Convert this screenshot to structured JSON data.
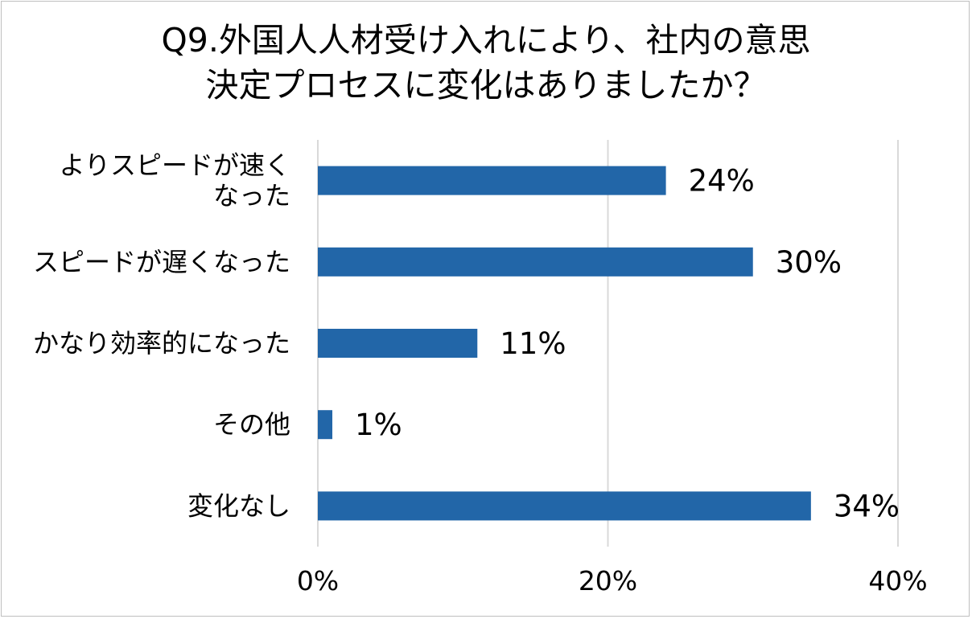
{
  "chart_data": {
    "type": "bar",
    "orientation": "horizontal",
    "title_lines": [
      "Q9.外国人人材受け入れにより、社内の意思",
      "決定プロセスに変化はありましたか？"
    ],
    "categories": [
      [
        "よりスピードが速く",
        "なった"
      ],
      [
        "スピードが遅くなった"
      ],
      [
        "かなり効率的になった"
      ],
      [
        "その他"
      ],
      [
        "変化なし"
      ]
    ],
    "values": [
      24,
      30,
      11,
      1,
      34
    ],
    "value_labels": [
      "24%",
      "30%",
      "11%",
      "1%",
      "34%"
    ],
    "xlim": [
      0,
      40
    ],
    "xticks": [
      0,
      20,
      40
    ],
    "xtick_labels": [
      "0%",
      "20%",
      "40%"
    ],
    "grid": "vertical",
    "bar_color": "#2266a8",
    "grid_color": "#d9d9d9"
  }
}
